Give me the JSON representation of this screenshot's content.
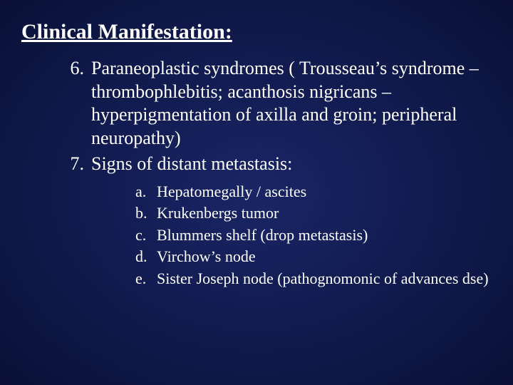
{
  "slide": {
    "title": "Clinical Manifestation:",
    "background_center": "#1a2566",
    "background_edge": "#020418",
    "text_color": "#ffffff",
    "title_fontsize": 30,
    "body_fontsize": 26,
    "sub_fontsize": 22,
    "font_family": "Times New Roman",
    "main_items": [
      {
        "num": "6.",
        "text": "Paraneoplastic syndromes ( Trousseau’s syndrome – thrombophlebitis; acanthosis nigricans – hyperpigmentation of axilla and groin; peripheral neuropathy)"
      },
      {
        "num": "7.",
        "text": "Signs of distant metastasis:",
        "sub": [
          {
            "letter": "a.",
            "text": "Hepatomegally / ascites"
          },
          {
            "letter": "b.",
            "text": "Krukenbergs tumor"
          },
          {
            "letter": "c.",
            "text": "Blummers shelf (drop metastasis)"
          },
          {
            "letter": "d.",
            "text": "Virchow’s node"
          },
          {
            "letter": "e.",
            "text": "Sister Joseph node (pathognomonic of advances dse)"
          }
        ]
      }
    ]
  }
}
